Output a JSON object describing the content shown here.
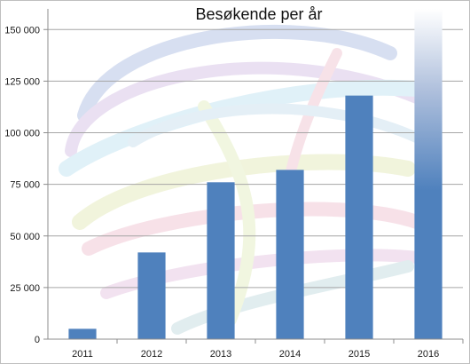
{
  "chart_data": {
    "type": "bar",
    "title": "Besøkende per år",
    "categories": [
      "2011",
      "2012",
      "2013",
      "2014",
      "2015",
      "2016"
    ],
    "values": [
      5000,
      42000,
      76000,
      82000,
      118000,
      160000
    ],
    "ylim": [
      0,
      160000
    ],
    "yticks": [
      0,
      25000,
      50000,
      75000,
      100000,
      125000,
      150000
    ],
    "ytick_labels": [
      "0",
      "25 000",
      "50 000",
      "75 000",
      "100 000",
      "125 000",
      "150 000"
    ],
    "xlabel": "",
    "ylabel": "",
    "grid": true,
    "bar_color": "#4f81bd",
    "last_bar_fades_to_white": true
  }
}
